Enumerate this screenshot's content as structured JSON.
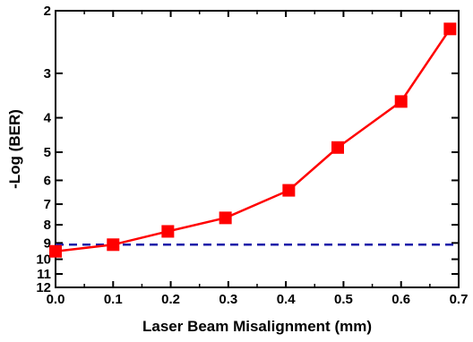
{
  "chart_data": {
    "type": "line",
    "title": "",
    "xlabel": "Laser Beam Misalignment (mm)",
    "ylabel": "-Log (BER)",
    "xlim": [
      0.0,
      0.7
    ],
    "x_ticks": [
      "0.0",
      "0.1",
      "0.2",
      "0.3",
      "0.4",
      "0.5",
      "0.6",
      "0.7"
    ],
    "y_axis_scale": "double-log of BER, inverted (larger -Log(BER) toward bottom)",
    "y_ticks": [
      "2",
      "3",
      "4",
      "5",
      "6",
      "7",
      "8",
      "9",
      "10",
      "11",
      "12"
    ],
    "ylim": [
      2,
      12
    ],
    "grid": false,
    "legend": "none",
    "series": [
      {
        "color": "#ff0000",
        "marker": "square",
        "x": [
          0.0,
          0.1,
          0.195,
          0.295,
          0.405,
          0.49,
          0.6,
          0.685
        ],
        "y": [
          9.5,
          9.1,
          8.35,
          7.65,
          6.4,
          4.85,
          3.6,
          2.25
        ]
      }
    ],
    "reference_lines": [
      {
        "orientation": "horizontal",
        "y": 9.1,
        "style": "dashed",
        "color": "#1a1aa8"
      }
    ]
  }
}
